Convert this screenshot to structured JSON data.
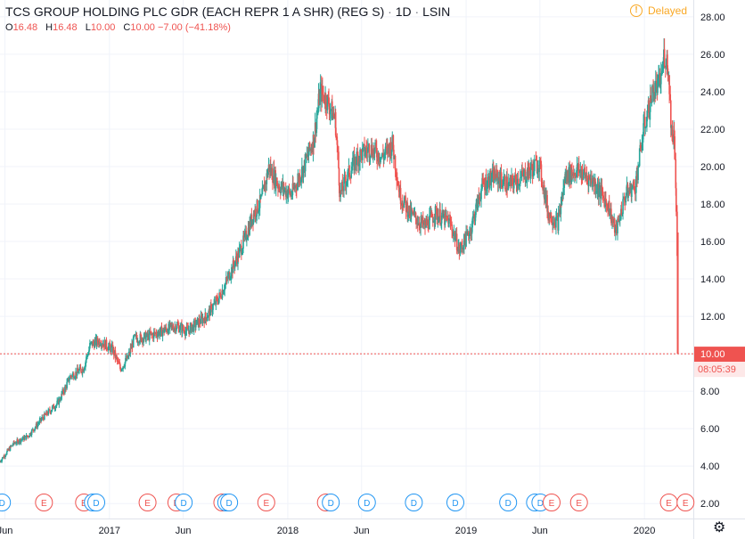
{
  "header": {
    "title": "TCS GROUP HOLDING PLC GDR (EACH REPR 1 A SHR) (REG S)",
    "interval": "1D",
    "exchange": "LSIN",
    "separator": "·",
    "delayed_label": "Delayed",
    "delayed_icon": "clock-icon"
  },
  "ohlc": {
    "o_label": "O",
    "o_value": "16.48",
    "h_label": "H",
    "h_value": "16.48",
    "l_label": "L",
    "l_value": "10.00",
    "c_label": "C",
    "c_value": "10.00 −7.00 (−41.18%)"
  },
  "last_price": {
    "value": "10.00",
    "countdown": "08:05:39",
    "color": "#ef5350"
  },
  "colors": {
    "up": "#26a69a",
    "down": "#ef5350",
    "dividend": "#2196f3",
    "earnings": "#ef5350",
    "grid": "#f0f3fa",
    "axis_text": "#131722"
  },
  "settings_icon": "gear-icon",
  "chart_data": {
    "type": "candlestick",
    "title": "TCS GROUP HOLDING PLC GDR (EACH REPR 1 A SHR) (REG S)",
    "ylim": [
      1.2,
      28.9
    ],
    "y_ticks": [
      2,
      4,
      6,
      8,
      10,
      12,
      14,
      16,
      18,
      20,
      22,
      24,
      26,
      28
    ],
    "y_tick_labels": [
      "2.00",
      "4.00",
      "6.00",
      "8.00",
      "10.00",
      "12.00",
      "14.00",
      "16.00",
      "18.00",
      "20.00",
      "22.00",
      "24.00",
      "26.00",
      "28.00"
    ],
    "x_ticks": [
      {
        "date": "2016-06-01",
        "label": "Jun"
      },
      {
        "date": "2017-01-01",
        "label": "2017"
      },
      {
        "date": "2017-06-01",
        "label": "Jun"
      },
      {
        "date": "2018-01-01",
        "label": "2018"
      },
      {
        "date": "2018-06-01",
        "label": "Jun"
      },
      {
        "date": "2019-01-01",
        "label": "2019"
      },
      {
        "date": "2019-06-01",
        "label": "Jun"
      },
      {
        "date": "2020-01-01",
        "label": "2020"
      }
    ],
    "x_range": [
      "2016-05-22",
      "2020-04-10"
    ],
    "price_path": [
      [
        "2016-05-22",
        4.2
      ],
      [
        "2016-06-20",
        5.2
      ],
      [
        "2016-07-20",
        5.6
      ],
      [
        "2016-08-20",
        6.6
      ],
      [
        "2016-09-20",
        7.4
      ],
      [
        "2016-10-15",
        8.8
      ],
      [
        "2016-11-10",
        9.2
      ],
      [
        "2016-11-25",
        10.5
      ],
      [
        "2016-12-15",
        10.7
      ],
      [
        "2017-01-10",
        10.2
      ],
      [
        "2017-01-25",
        9.2
      ],
      [
        "2017-02-10",
        9.8
      ],
      [
        "2017-02-22",
        10.8
      ],
      [
        "2017-03-20",
        10.9
      ],
      [
        "2017-04-20",
        11.2
      ],
      [
        "2017-05-20",
        11.5
      ],
      [
        "2017-06-10",
        11.2
      ],
      [
        "2017-06-25",
        11.5
      ],
      [
        "2017-07-20",
        12.0
      ],
      [
        "2017-08-15",
        13.0
      ],
      [
        "2017-09-10",
        14.5
      ],
      [
        "2017-10-05",
        16.0
      ],
      [
        "2017-10-25",
        17.5
      ],
      [
        "2017-11-10",
        18.2
      ],
      [
        "2017-11-25",
        20.0
      ],
      [
        "2017-12-15",
        19.0
      ],
      [
        "2018-01-10",
        18.5
      ],
      [
        "2018-02-05",
        20.0
      ],
      [
        "2018-02-25",
        21.5
      ],
      [
        "2018-03-10",
        24.0
      ],
      [
        "2018-03-25",
        23.5
      ],
      [
        "2018-04-10",
        22.5
      ],
      [
        "2018-04-20",
        18.5
      ],
      [
        "2018-05-05",
        19.5
      ],
      [
        "2018-05-25",
        20.5
      ],
      [
        "2018-06-20",
        21.0
      ],
      [
        "2018-07-15",
        20.5
      ],
      [
        "2018-08-05",
        21.2
      ],
      [
        "2018-08-20",
        18.5
      ],
      [
        "2018-09-10",
        17.5
      ],
      [
        "2018-10-10",
        16.8
      ],
      [
        "2018-11-01",
        17.5
      ],
      [
        "2018-12-01",
        17.0
      ],
      [
        "2018-12-20",
        15.5
      ],
      [
        "2019-01-10",
        16.5
      ],
      [
        "2019-02-05",
        19.0
      ],
      [
        "2019-03-01",
        19.5
      ],
      [
        "2019-04-01",
        19.0
      ],
      [
        "2019-05-01",
        19.5
      ],
      [
        "2019-06-01",
        20.2
      ],
      [
        "2019-06-20",
        17.5
      ],
      [
        "2019-07-10",
        17.0
      ],
      [
        "2019-07-25",
        19.5
      ],
      [
        "2019-08-20",
        19.8
      ],
      [
        "2019-09-20",
        19.2
      ],
      [
        "2019-10-20",
        18.0
      ],
      [
        "2019-11-05",
        16.5
      ],
      [
        "2019-11-25",
        18.5
      ],
      [
        "2019-12-15",
        19.0
      ],
      [
        "2020-01-01",
        22.0
      ],
      [
        "2020-01-20",
        24.0
      ],
      [
        "2020-02-05",
        24.5
      ],
      [
        "2020-02-12",
        26.0
      ],
      [
        "2020-02-20",
        25.5
      ],
      [
        "2020-02-28",
        21.5
      ],
      [
        "2020-03-04",
        22.0
      ],
      [
        "2020-03-09",
        16.5
      ],
      [
        "2020-03-11",
        10.0
      ]
    ],
    "events": [
      {
        "type": "E",
        "date": "2016-05-18"
      },
      {
        "type": "D",
        "date": "2016-05-26"
      },
      {
        "type": "E",
        "date": "2016-08-20"
      },
      {
        "type": "E",
        "date": "2016-11-10"
      },
      {
        "type": "D",
        "date": "2016-11-28"
      },
      {
        "type": "D",
        "date": "2016-12-05"
      },
      {
        "type": "E",
        "date": "2017-03-20"
      },
      {
        "type": "E",
        "date": "2017-05-18"
      },
      {
        "type": "D",
        "date": "2017-06-02"
      },
      {
        "type": "E",
        "date": "2017-08-20"
      },
      {
        "type": "D",
        "date": "2017-08-28"
      },
      {
        "type": "D",
        "date": "2017-09-03"
      },
      {
        "type": "E",
        "date": "2017-11-18"
      },
      {
        "type": "E",
        "date": "2018-03-20"
      },
      {
        "type": "D",
        "date": "2018-03-30"
      },
      {
        "type": "D",
        "date": "2018-06-12"
      },
      {
        "type": "D",
        "date": "2018-09-16"
      },
      {
        "type": "D",
        "date": "2018-12-10"
      },
      {
        "type": "D",
        "date": "2019-03-28"
      },
      {
        "type": "D",
        "date": "2019-05-22"
      },
      {
        "type": "D",
        "date": "2019-06-02"
      },
      {
        "type": "E",
        "date": "2019-06-25"
      },
      {
        "type": "E",
        "date": "2019-08-20"
      },
      {
        "type": "E",
        "date": "2020-02-20"
      },
      {
        "type": "E",
        "date": "2020-03-25"
      }
    ],
    "last_value_line": 10.0,
    "grid": true
  }
}
